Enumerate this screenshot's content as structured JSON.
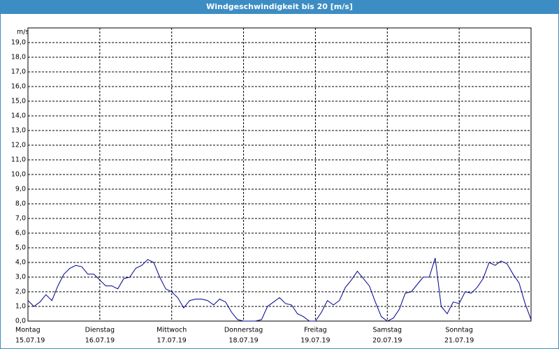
{
  "chart_data": {
    "type": "line",
    "title": "Windgeschwindigkeit bis 20 [m/s]",
    "y_unit": "m/s",
    "x": [
      0,
      2,
      4,
      6,
      8,
      10,
      12,
      14,
      16,
      18,
      20,
      22,
      24,
      26,
      28,
      30,
      32,
      34,
      36,
      38,
      40,
      42,
      44,
      46,
      48,
      50,
      52,
      54,
      56,
      58,
      60,
      62,
      64,
      66,
      68,
      70,
      72,
      74,
      76,
      78,
      80,
      82,
      84,
      86,
      88,
      90,
      92,
      94,
      96,
      98,
      100,
      102,
      104,
      106,
      108,
      110,
      112,
      114,
      116,
      118,
      120,
      122,
      124,
      126,
      128,
      130,
      132,
      134,
      136,
      138,
      140,
      142,
      144,
      146,
      148,
      150,
      152,
      154,
      156,
      158,
      160,
      162,
      164,
      166,
      168
    ],
    "series": [
      {
        "name": "Windgeschwindigkeit",
        "color": "#00008b",
        "values": [
          1.4,
          1.0,
          1.3,
          1.8,
          1.4,
          2.4,
          3.2,
          3.6,
          3.8,
          3.7,
          3.2,
          3.2,
          2.8,
          2.4,
          2.4,
          2.2,
          2.9,
          3.0,
          3.6,
          3.8,
          4.2,
          4.0,
          3.0,
          2.2,
          2.0,
          1.6,
          0.9,
          1.4,
          1.5,
          1.5,
          1.4,
          1.1,
          1.5,
          1.3,
          0.6,
          0.1,
          0.0,
          0.0,
          0.0,
          0.1,
          1.0,
          1.3,
          1.6,
          1.2,
          1.1,
          0.5,
          0.3,
          0.0,
          0.0,
          0.6,
          1.4,
          1.1,
          1.4,
          2.3,
          2.8,
          3.4,
          2.9,
          2.4,
          1.3,
          0.3,
          0.0,
          0.2,
          0.8,
          1.9,
          2.0,
          2.5,
          3.0,
          3.0,
          4.3,
          1.0,
          0.5,
          1.3,
          1.2,
          2.0,
          1.9,
          2.3,
          2.9,
          4.0,
          3.8,
          4.1,
          3.9,
          3.2,
          2.6,
          1.2,
          0.1
        ]
      }
    ],
    "xlim": [
      0,
      168
    ],
    "xticks": [
      {
        "value": 0,
        "label": "Montag"
      },
      {
        "value": 24,
        "label": "Dienstag"
      },
      {
        "value": 48,
        "label": "Mittwoch"
      },
      {
        "value": 72,
        "label": "Donnerstag"
      },
      {
        "value": 96,
        "label": "Freitag"
      },
      {
        "value": 120,
        "label": "Samstag"
      },
      {
        "value": 144,
        "label": "Sonntag"
      }
    ],
    "xtick_dates": [
      "15.07.19",
      "16.07.19",
      "17.07.19",
      "18.07.19",
      "19.07.19",
      "20.07.19",
      "21.07.19"
    ],
    "ylim": [
      0,
      20
    ],
    "yticks": [
      {
        "value": 0,
        "label": "0,0"
      },
      {
        "value": 1,
        "label": "1,0"
      },
      {
        "value": 2,
        "label": "2,0"
      },
      {
        "value": 3,
        "label": "3,0"
      },
      {
        "value": 4,
        "label": "4,0"
      },
      {
        "value": 5,
        "label": "5,0"
      },
      {
        "value": 6,
        "label": "6,0"
      },
      {
        "value": 7,
        "label": "7,0"
      },
      {
        "value": 8,
        "label": "8,0"
      },
      {
        "value": 9,
        "label": "9,0"
      },
      {
        "value": 10,
        "label": "10,0"
      },
      {
        "value": 11,
        "label": "11,0"
      },
      {
        "value": 12,
        "label": "12,0"
      },
      {
        "value": 13,
        "label": "13,0"
      },
      {
        "value": 14,
        "label": "14,0"
      },
      {
        "value": 15,
        "label": "15,0"
      },
      {
        "value": 16,
        "label": "16,0"
      },
      {
        "value": 17,
        "label": "17,0"
      },
      {
        "value": 18,
        "label": "18,0"
      },
      {
        "value": 19,
        "label": "19,0"
      }
    ],
    "grid": true
  }
}
